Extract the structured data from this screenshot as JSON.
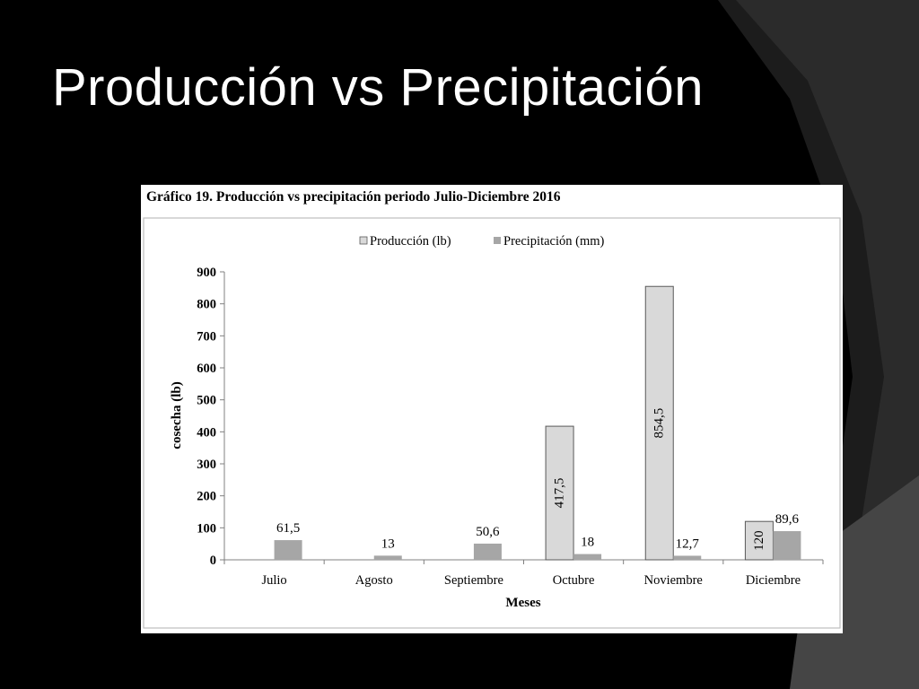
{
  "slide": {
    "title": "Producción vs Precipitación"
  },
  "chart_data": {
    "type": "bar",
    "caption": "Gráfico 19. Producción vs precipitación periodo Julio-Diciembre 2016",
    "xlabel": "Meses",
    "ylabel": "cosecha (lb)",
    "ylim": [
      0,
      900
    ],
    "yticks": [
      "0",
      "100",
      "200",
      "300",
      "400",
      "500",
      "600",
      "700",
      "800",
      "900"
    ],
    "grid": false,
    "legend_position": "top-center",
    "categories": [
      "Julio",
      "Agosto",
      "Septiembre",
      "Octubre",
      "Noviembre",
      "Diciembre"
    ],
    "series": [
      {
        "name": "Producción (lb)",
        "color": "#d9d9d9",
        "values": [
          null,
          null,
          null,
          417.5,
          854.5,
          120
        ],
        "labels": [
          "",
          "",
          "",
          "417,5",
          "854,5",
          "120"
        ]
      },
      {
        "name": "Precipitación (mm)",
        "color": "#a6a6a6",
        "values": [
          61.5,
          13,
          50.6,
          18,
          12.7,
          89.6
        ],
        "labels": [
          "61,5",
          "13",
          "50,6",
          "18",
          "12,7",
          "89,6"
        ]
      }
    ]
  }
}
